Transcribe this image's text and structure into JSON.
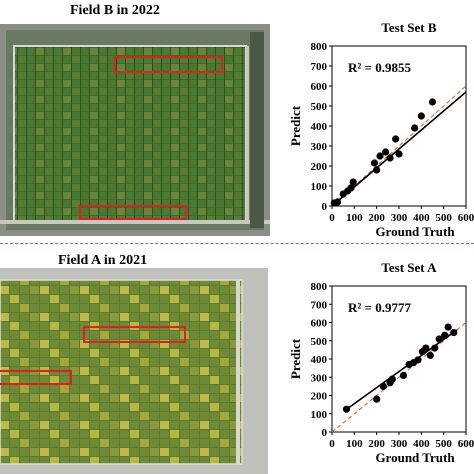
{
  "fields": [
    {
      "title": "Field B in 2022"
    },
    {
      "title": "Field A in 2021"
    }
  ],
  "colors": {
    "highlight_box": "#e02020",
    "fit_line": "#000000",
    "identity_line": "#e07020",
    "point": "#000000",
    "field_green": "#3f6a2a",
    "field_yellow": "#a8a83a",
    "divider": "#c85a5a"
  },
  "chart_data": [
    {
      "type": "scatter",
      "title": "Test Set B",
      "xlabel": "Ground Truth",
      "ylabel": "Predict",
      "annotation": "R² = 0.9855",
      "xlim": [
        0,
        600
      ],
      "ylim": [
        0,
        800
      ],
      "xticks": [
        "0",
        "100",
        "200",
        "300",
        "400",
        "500",
        "600"
      ],
      "yticks": [
        "0",
        "100",
        "200",
        "300",
        "400",
        "500",
        "600",
        "700",
        "800"
      ],
      "fit_line": [
        [
          0,
          0
        ],
        [
          600,
          570
        ]
      ],
      "identity_line": [
        [
          0,
          0
        ],
        [
          600,
          600
        ]
      ],
      "points": [
        [
          10,
          15
        ],
        [
          25,
          20
        ],
        [
          50,
          60
        ],
        [
          70,
          75
        ],
        [
          95,
          120
        ],
        [
          85,
          90
        ],
        [
          190,
          215
        ],
        [
          200,
          180
        ],
        [
          215,
          250
        ],
        [
          240,
          270
        ],
        [
          260,
          240
        ],
        [
          285,
          335
        ],
        [
          300,
          260
        ],
        [
          370,
          390
        ],
        [
          400,
          450
        ],
        [
          450,
          520
        ]
      ]
    },
    {
      "type": "scatter",
      "title": "Test Set A",
      "xlabel": "Ground Truth",
      "ylabel": "Predict",
      "annotation": "R² = 0.9777",
      "xlim": [
        0,
        600
      ],
      "ylim": [
        0,
        800
      ],
      "xticks": [
        "0",
        "100",
        "200",
        "300",
        "400",
        "500",
        "600"
      ],
      "yticks": [
        "0",
        "100",
        "200",
        "300",
        "400",
        "500",
        "600",
        "700",
        "800"
      ],
      "fit_line": [
        [
          60,
          120
        ],
        [
          560,
          560
        ]
      ],
      "identity_line": [
        [
          0,
          0
        ],
        [
          600,
          600
        ]
      ],
      "points": [
        [
          65,
          125
        ],
        [
          200,
          180
        ],
        [
          230,
          250
        ],
        [
          260,
          270
        ],
        [
          270,
          290
        ],
        [
          320,
          310
        ],
        [
          345,
          370
        ],
        [
          365,
          380
        ],
        [
          385,
          395
        ],
        [
          405,
          440
        ],
        [
          420,
          460
        ],
        [
          440,
          420
        ],
        [
          460,
          460
        ],
        [
          480,
          510
        ],
        [
          505,
          530
        ],
        [
          520,
          575
        ],
        [
          545,
          545
        ]
      ]
    }
  ]
}
